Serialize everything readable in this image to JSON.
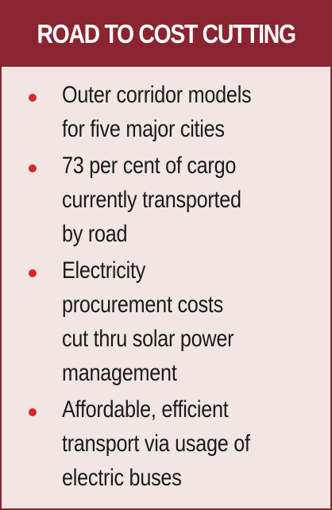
{
  "header": {
    "title": "ROAD TO COST CUTTING"
  },
  "items": [
    [
      "Outer corridor models",
      "for five major cities"
    ],
    [
      "73 per cent of cargo",
      "currently transported",
      "by road"
    ],
    [
      "Electricity",
      "procurement costs",
      "cut thru solar power",
      "management"
    ],
    [
      "Affordable, efficient",
      "transport via usage of",
      "electric buses"
    ]
  ]
}
